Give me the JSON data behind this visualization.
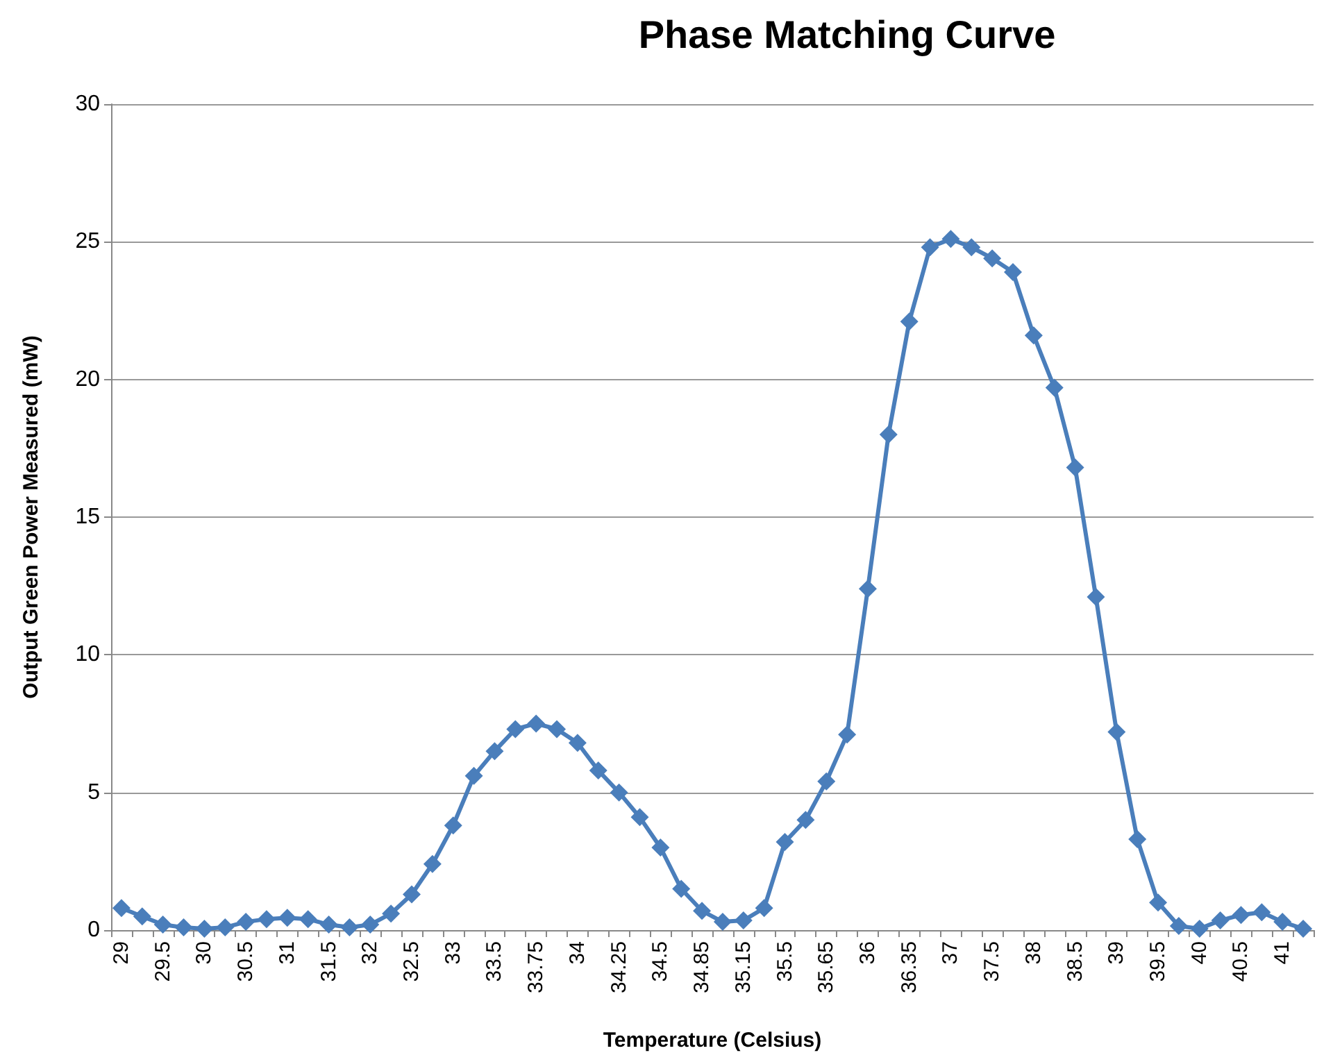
{
  "chart_data": {
    "type": "line",
    "title": "Phase Matching Curve",
    "xlabel": "Temperature (Celsius)",
    "ylabel": "Output Green Power Measured (mW)",
    "categories": [
      "29",
      null,
      "29.5",
      null,
      "30",
      null,
      "30.5",
      null,
      "31",
      null,
      "31.5",
      null,
      "32",
      null,
      "32.5",
      null,
      "33",
      null,
      "33.5",
      null,
      "33.75",
      null,
      "34",
      null,
      "34.25",
      null,
      "34.5",
      null,
      "34.85",
      null,
      "35.15",
      null,
      "35.5",
      null,
      "35.65",
      null,
      "36",
      null,
      "36.35",
      null,
      "37",
      null,
      "37.5",
      null,
      "38",
      null,
      "38.5",
      null,
      "39",
      null,
      "39.5",
      null,
      "40",
      null,
      "40.5",
      null,
      "41",
      null
    ],
    "series": [
      {
        "color": "#4a7ebb",
        "values": [
          0.8,
          0.5,
          0.2,
          0.1,
          0.05,
          0.1,
          0.3,
          0.4,
          0.45,
          0.4,
          0.2,
          0.1,
          0.2,
          0.6,
          1.3,
          2.4,
          3.8,
          5.6,
          6.5,
          7.3,
          7.5,
          7.3,
          6.8,
          5.8,
          5.0,
          4.1,
          3.0,
          1.5,
          0.7,
          0.3,
          0.35,
          0.8,
          3.2,
          4.0,
          5.4,
          7.1,
          12.4,
          18.0,
          22.1,
          24.8,
          25.1,
          24.8,
          24.4,
          23.9,
          21.6,
          19.7,
          16.8,
          12.1,
          7.2,
          3.3,
          1.0,
          0.15,
          0.05,
          0.35,
          0.55,
          0.65,
          0.3,
          0.05
        ]
      }
    ],
    "ylim": [
      0,
      30
    ],
    "yticks": [
      0,
      5,
      10,
      15,
      20,
      25,
      30
    ],
    "grid": "y",
    "marker": "diamond",
    "line_style": "solid"
  }
}
